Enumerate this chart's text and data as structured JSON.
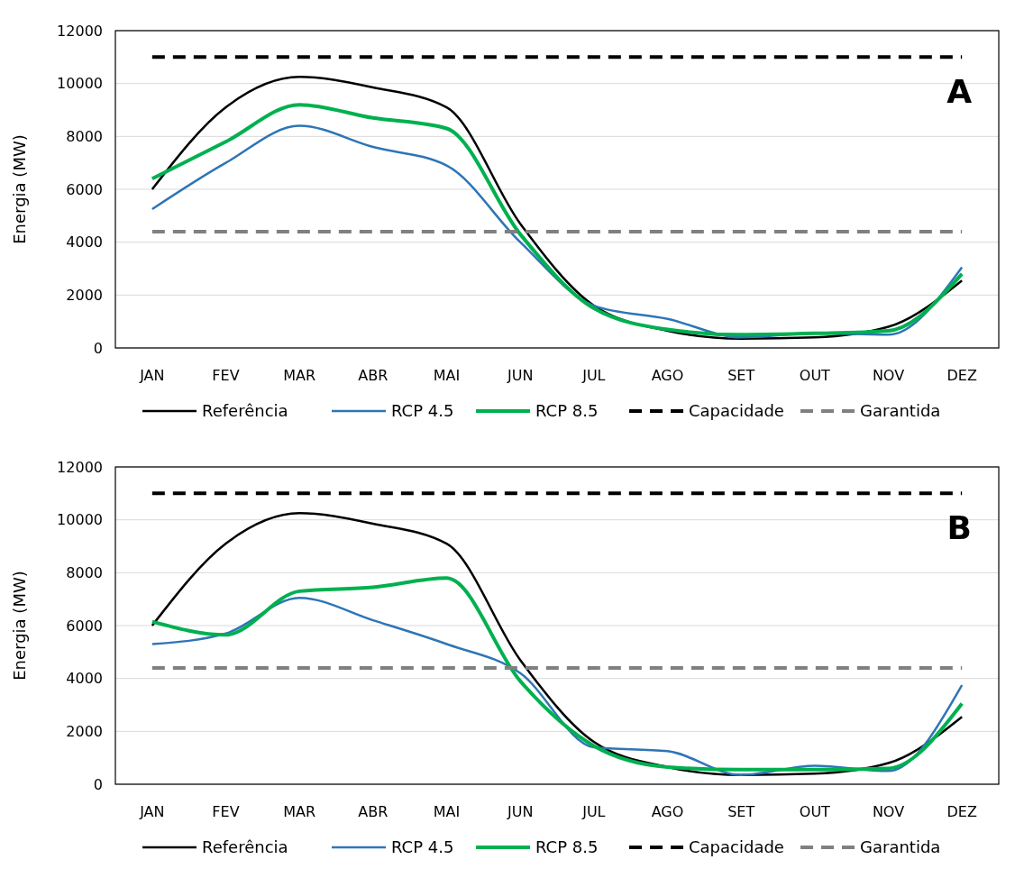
{
  "chart_data": [
    {
      "type": "line",
      "ylabel": "Energia (MW)",
      "categories": [
        "JAN",
        "FEV",
        "MAR",
        "ABR",
        "MAI",
        "JUN",
        "JUL",
        "AGO",
        "SET",
        "OUT",
        "NOV",
        "DEZ"
      ],
      "ylim": [
        0,
        12000
      ],
      "yticks": [
        0,
        2000,
        4000,
        6000,
        8000,
        10000,
        12000
      ],
      "grid": "y",
      "legend": "bottom",
      "annotations": [
        "A"
      ],
      "series": [
        {
          "name": "Referência",
          "color": "#000000",
          "values": [
            6000,
            9100,
            10250,
            9850,
            9100,
            4700,
            1600,
            650,
            350,
            400,
            800,
            2550
          ]
        },
        {
          "name": "RCP 4.5",
          "color": "#2e75b6",
          "values": [
            5250,
            7000,
            8400,
            7600,
            6900,
            4000,
            1600,
            1100,
            400,
            550,
            500,
            3050
          ]
        },
        {
          "name": "RCP 8.5",
          "color": "#00b050",
          "values": [
            6400,
            7800,
            9200,
            8700,
            8300,
            4300,
            1500,
            700,
            500,
            550,
            650,
            2800
          ]
        },
        {
          "name": "Capacidade",
          "color": "#000000",
          "line_style": "dashed",
          "values": [
            11000,
            11000,
            11000,
            11000,
            11000,
            11000,
            11000,
            11000,
            11000,
            11000,
            11000,
            11000
          ]
        },
        {
          "name": "Garantida",
          "color": "#808080",
          "line_style": "dashed",
          "values": [
            4400,
            4400,
            4400,
            4400,
            4400,
            4400,
            4400,
            4400,
            4400,
            4400,
            4400,
            4400
          ]
        }
      ]
    },
    {
      "type": "line",
      "ylabel": "Energia (MW)",
      "categories": [
        "JAN",
        "FEV",
        "MAR",
        "ABR",
        "MAI",
        "JUN",
        "JUL",
        "AGO",
        "SET",
        "OUT",
        "NOV",
        "DEZ"
      ],
      "ylim": [
        0,
        12000
      ],
      "yticks": [
        0,
        2000,
        4000,
        6000,
        8000,
        10000,
        12000
      ],
      "grid": "y",
      "legend": "bottom",
      "annotations": [
        "B"
      ],
      "series": [
        {
          "name": "Referência",
          "color": "#000000",
          "values": [
            6000,
            9100,
            10250,
            9850,
            9100,
            4700,
            1600,
            650,
            350,
            400,
            800,
            2550
          ]
        },
        {
          "name": "RCP 4.5",
          "color": "#2e75b6",
          "values": [
            5300,
            5700,
            7050,
            6200,
            5300,
            4200,
            1400,
            1250,
            350,
            700,
            500,
            3750
          ]
        },
        {
          "name": "RCP 8.5",
          "color": "#00b050",
          "values": [
            6150,
            5650,
            7300,
            7450,
            7800,
            3900,
            1450,
            650,
            550,
            550,
            600,
            3050
          ]
        },
        {
          "name": "Capacidade",
          "color": "#000000",
          "line_style": "dashed",
          "values": [
            11000,
            11000,
            11000,
            11000,
            11000,
            11000,
            11000,
            11000,
            11000,
            11000,
            11000,
            11000
          ]
        },
        {
          "name": "Garantida",
          "color": "#808080",
          "line_style": "dashed",
          "values": [
            4400,
            4400,
            4400,
            4400,
            4400,
            4400,
            4400,
            4400,
            4400,
            4400,
            4400,
            4400
          ]
        }
      ]
    }
  ]
}
